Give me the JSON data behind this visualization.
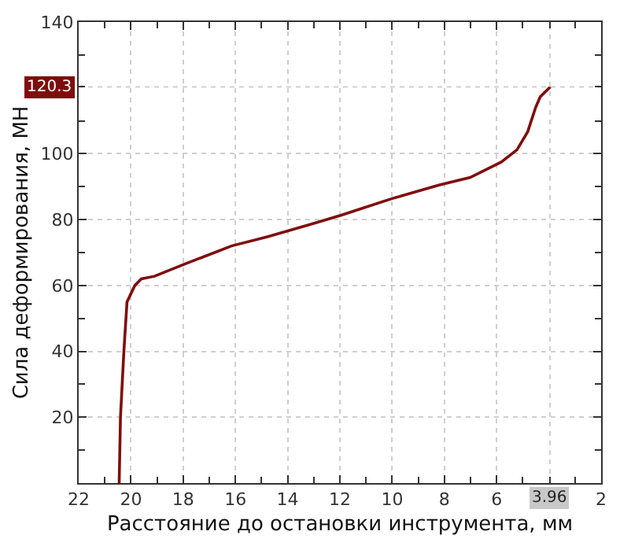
{
  "chart_data": {
    "type": "line",
    "xlabel": "Расстояние до остановки инструмента, мм",
    "ylabel": "Сила деформирования, МН",
    "x": [
      20.45,
      20.4,
      20.27,
      20.15,
      19.85,
      19.6,
      19.1,
      17.94,
      16.15,
      14.78,
      13.16,
      11.97,
      10.0,
      8.21,
      7.01,
      5.82,
      5.22,
      4.81,
      4.51,
      4.33,
      3.97,
      3.96
    ],
    "series": [
      {
        "color": "#7f0d0d",
        "values": [
          0,
          20,
          40,
          55,
          60,
          62,
          62.8,
          66.5,
          72,
          74.8,
          78.5,
          81.3,
          86.4,
          90.5,
          92.8,
          97.5,
          101.2,
          106.7,
          114,
          117.3,
          120.1,
          120.3
        ]
      }
    ],
    "xlim": [
      22,
      2
    ],
    "xticks": [
      22,
      20,
      18,
      16,
      14,
      12,
      10,
      8,
      6,
      2,
      {
        "value": 21,
        "label": null
      },
      {
        "value": 19,
        "label": null
      },
      {
        "value": 17,
        "label": null
      },
      {
        "value": 15,
        "label": null
      },
      {
        "value": 13,
        "label": null
      },
      {
        "value": 11,
        "label": null
      },
      {
        "value": 9,
        "label": null
      },
      {
        "value": 7,
        "label": null
      },
      {
        "value": 5,
        "label": null
      },
      {
        "value": 3,
        "label": null
      }
    ],
    "ylim": [
      0,
      140
    ],
    "yticks": [
      20,
      40,
      60,
      80,
      100,
      140,
      {
        "value": 10,
        "label": null
      },
      {
        "value": 30,
        "label": null
      },
      {
        "value": 50,
        "label": null
      },
      {
        "value": 70,
        "label": null
      },
      {
        "value": 90,
        "label": null
      },
      {
        "value": 110,
        "label": null
      },
      {
        "value": 130,
        "label": null
      }
    ],
    "annotations": [
      {
        "text": "120.3",
        "y": 120.3
      },
      {
        "text": "3.96",
        "x": 3.96
      }
    ],
    "grid": true,
    "marker": "none",
    "line_style": "solid"
  }
}
